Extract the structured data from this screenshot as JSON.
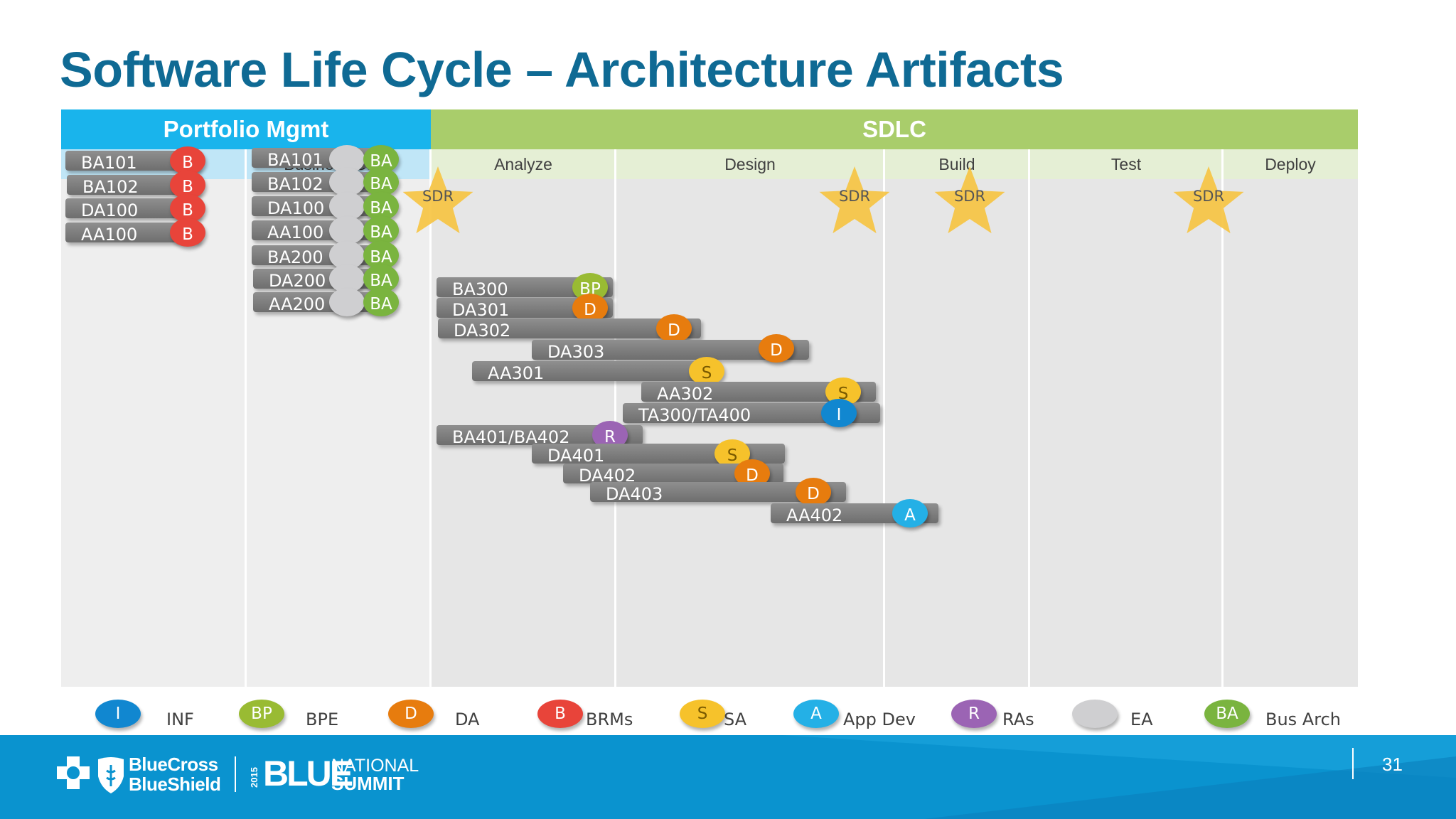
{
  "title": "Software Life Cycle – Architecture Artifacts",
  "headers": {
    "portfolio": "Portfolio Mgmt",
    "sdlc": "SDLC"
  },
  "phases": [
    "Planning",
    "Business Case",
    "Analyze",
    "Design",
    "Build",
    "Test",
    "Deploy"
  ],
  "gate_label": "SDR",
  "roles": {
    "I": {
      "abbr": "I",
      "name": "INF",
      "color": "#1187d0"
    },
    "BP": {
      "abbr": "BP",
      "name": "BPE",
      "color": "#99bb33"
    },
    "D": {
      "abbr": "D",
      "name": "DA",
      "color": "#e77c0e"
    },
    "B": {
      "abbr": "B",
      "name": "BRMs",
      "color": "#e8443a"
    },
    "S": {
      "abbr": "S",
      "name": "SA",
      "color": "#f6c22b"
    },
    "A": {
      "abbr": "A",
      "name": "App Dev",
      "color": "#24b0e6"
    },
    "R": {
      "abbr": "R",
      "name": "RAs",
      "color": "#9b64b4"
    },
    "EA": {
      "abbr": "",
      "name": "EA",
      "color": "#cfcfd1"
    },
    "BA": {
      "abbr": "BA",
      "name": "Bus Arch",
      "color": "#7ab43f"
    }
  },
  "legend_order": [
    "I",
    "BP",
    "D",
    "B",
    "S",
    "A",
    "R",
    "EA",
    "BA"
  ],
  "artifacts": [
    {
      "label": "BA101",
      "roles": [
        "B"
      ]
    },
    {
      "label": "BA102",
      "roles": [
        "B"
      ]
    },
    {
      "label": "DA100",
      "roles": [
        "B"
      ]
    },
    {
      "label": "AA100",
      "roles": [
        "B"
      ]
    },
    {
      "label": "BA101",
      "roles": [
        "EA",
        "BA"
      ]
    },
    {
      "label": "BA102",
      "roles": [
        "EA",
        "BA"
      ]
    },
    {
      "label": "DA100",
      "roles": [
        "EA",
        "BA"
      ]
    },
    {
      "label": "AA100",
      "roles": [
        "EA",
        "BA"
      ]
    },
    {
      "label": "BA200",
      "roles": [
        "EA",
        "BA"
      ]
    },
    {
      "label": "DA200",
      "roles": [
        "EA",
        "BA"
      ]
    },
    {
      "label": "AA200",
      "roles": [
        "EA",
        "BA"
      ]
    },
    {
      "label": "BA300",
      "roles": [
        "BP"
      ]
    },
    {
      "label": "DA301",
      "roles": [
        "D"
      ]
    },
    {
      "label": "DA302",
      "roles": [
        "D"
      ]
    },
    {
      "label": "DA303",
      "roles": [
        "D"
      ]
    },
    {
      "label": "AA301",
      "roles": [
        "S"
      ]
    },
    {
      "label": "AA302",
      "roles": [
        "S"
      ]
    },
    {
      "label": "TA300/TA400",
      "roles": [
        "I"
      ]
    },
    {
      "label": "BA401/BA402",
      "roles": [
        "R"
      ]
    },
    {
      "label": "DA401",
      "roles": [
        "S"
      ]
    },
    {
      "label": "DA402",
      "roles": [
        "D"
      ]
    },
    {
      "label": "DA403",
      "roles": [
        "D"
      ]
    },
    {
      "label": "AA402",
      "roles": [
        "A"
      ]
    }
  ],
  "footer": {
    "brand_line1": "BlueCross",
    "brand_line2": "BlueShield",
    "event_year": "2015",
    "event_blue": "BLUE",
    "event_national": "NATIONAL",
    "event_summit": "SUMMIT",
    "page_number": "31"
  }
}
